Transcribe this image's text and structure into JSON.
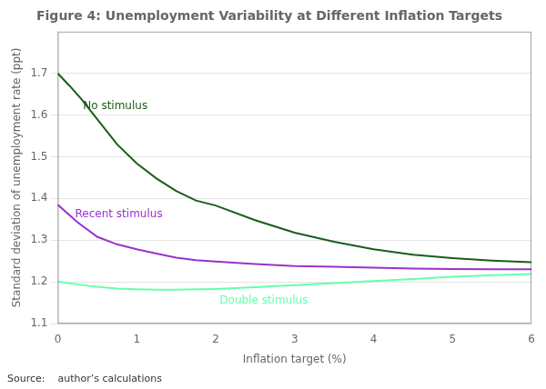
{
  "chart_data": {
    "type": "line",
    "title": "Figure 4: Unemployment Variability at Different Inflation Targets",
    "xlabel": "Inflation target (%)",
    "ylabel": "Standard deviation of unemployment rate (ppt)",
    "source": "Source:    author’s calculations",
    "xlim": [
      0,
      6
    ],
    "ylim": [
      1.1,
      1.8
    ],
    "xticks": [
      0,
      1,
      2,
      3,
      4,
      5,
      6
    ],
    "yticks": [
      1.1,
      1.2,
      1.3,
      1.4,
      1.5,
      1.6,
      1.7
    ],
    "grid": "y",
    "series": [
      {
        "name": "No stimulus",
        "color": "#1a5c1a",
        "x": [
          0,
          0.15,
          0.3,
          0.5,
          0.75,
          1.0,
          1.25,
          1.5,
          1.75,
          2.0,
          2.5,
          3.0,
          3.5,
          4.0,
          4.5,
          5.0,
          5.5,
          6.0
        ],
        "values": [
          1.7,
          1.67,
          1.638,
          1.59,
          1.53,
          1.484,
          1.448,
          1.418,
          1.395,
          1.383,
          1.348,
          1.318,
          1.296,
          1.278,
          1.265,
          1.257,
          1.251,
          1.247
        ]
      },
      {
        "name": "Recent stimulus",
        "color": "#9933cc",
        "x": [
          0,
          0.25,
          0.5,
          0.75,
          1.0,
          1.25,
          1.5,
          1.75,
          2.0,
          2.5,
          3.0,
          3.5,
          4.0,
          4.5,
          5.0,
          5.5,
          6.0
        ],
        "values": [
          1.385,
          1.343,
          1.308,
          1.29,
          1.278,
          1.268,
          1.258,
          1.252,
          1.249,
          1.243,
          1.238,
          1.236,
          1.234,
          1.232,
          1.231,
          1.23,
          1.23
        ]
      },
      {
        "name": "Double stimulus",
        "color": "#66ffaa",
        "x": [
          0,
          0.25,
          0.5,
          0.75,
          1.0,
          1.25,
          1.5,
          1.75,
          2.0,
          2.5,
          3.0,
          3.5,
          4.0,
          4.5,
          5.0,
          5.5,
          6.0
        ],
        "values": [
          1.2,
          1.194,
          1.188,
          1.184,
          1.182,
          1.181,
          1.181,
          1.182,
          1.183,
          1.187,
          1.192,
          1.197,
          1.202,
          1.207,
          1.212,
          1.216,
          1.219
        ]
      }
    ],
    "annotations": [
      {
        "text": "No stimulus",
        "x": 0.32,
        "y": 1.615,
        "color": "#1a5c1a"
      },
      {
        "text": "Recent stimulus",
        "x": 0.22,
        "y": 1.355,
        "color": "#9933cc"
      },
      {
        "text": "Double stimulus",
        "x": 2.05,
        "y": 1.148,
        "color": "#66ffaa"
      }
    ]
  }
}
